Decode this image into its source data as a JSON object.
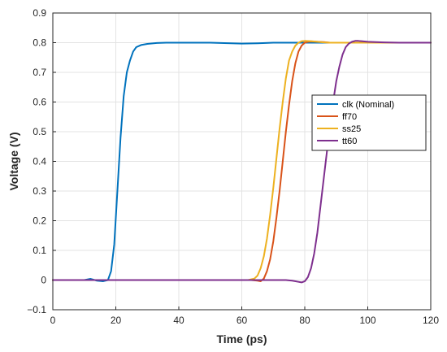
{
  "chart_data": {
    "type": "line",
    "xlabel": "Time (ps)",
    "ylabel": "Voltage (V)",
    "xlim": [
      0,
      120
    ],
    "ylim": [
      -0.1,
      0.9
    ],
    "xticks": [
      0,
      20,
      40,
      60,
      80,
      100,
      120
    ],
    "yticks": [
      -0.1,
      0,
      0.1,
      0.2,
      0.3,
      0.4,
      0.5,
      0.6,
      0.7,
      0.8,
      0.9
    ],
    "xtick_labels": [
      "0",
      "20",
      "40",
      "60",
      "80",
      "100",
      "120"
    ],
    "ytick_labels": [
      "−0.1",
      "0",
      "0.1",
      "0.2",
      "0.3",
      "0.4",
      "0.5",
      "0.6",
      "0.7",
      "0.8",
      "0.9"
    ],
    "grid": true,
    "legend_position": "right",
    "series": [
      {
        "name": "clk (Nominal)",
        "color": "#0072BD",
        "x": [
          0,
          10,
          12,
          14,
          16,
          17.5,
          18.5,
          19.5,
          20.5,
          21.5,
          22.5,
          23.5,
          24.5,
          25.5,
          26.5,
          28,
          30,
          33,
          36,
          40,
          50,
          60,
          65,
          70,
          80,
          90,
          100,
          110,
          120
        ],
        "y": [
          0,
          0,
          0.004,
          -0.002,
          -0.004,
          0,
          0.03,
          0.12,
          0.3,
          0.48,
          0.62,
          0.7,
          0.74,
          0.77,
          0.785,
          0.792,
          0.796,
          0.799,
          0.8,
          0.8,
          0.8,
          0.797,
          0.798,
          0.8,
          0.8,
          0.8,
          0.8,
          0.8,
          0.8
        ]
      },
      {
        "name": "ff70",
        "color": "#D95319",
        "x": [
          0,
          20,
          40,
          55,
          60,
          63,
          65,
          66,
          67,
          68,
          69,
          70,
          71,
          72,
          73,
          74,
          75,
          76,
          77,
          78,
          79,
          80,
          81,
          82,
          84,
          86,
          88,
          90,
          100,
          110,
          120
        ],
        "y": [
          0,
          0,
          0,
          0,
          0,
          0,
          -0.002,
          -0.004,
          0.005,
          0.03,
          0.07,
          0.13,
          0.21,
          0.3,
          0.4,
          0.5,
          0.59,
          0.67,
          0.73,
          0.77,
          0.79,
          0.8,
          0.803,
          0.804,
          0.803,
          0.802,
          0.8,
          0.8,
          0.8,
          0.8,
          0.8
        ]
      },
      {
        "name": "ss25",
        "color": "#EDB120",
        "x": [
          0,
          20,
          40,
          55,
          60,
          62,
          64,
          65,
          66,
          67,
          68,
          69,
          70,
          71,
          72,
          73,
          74,
          75,
          76,
          77,
          78,
          79,
          80,
          82,
          84,
          86,
          88,
          90,
          100,
          110,
          120
        ],
        "y": [
          0,
          0,
          0,
          0,
          0,
          0,
          0.005,
          0.015,
          0.04,
          0.08,
          0.14,
          0.22,
          0.31,
          0.41,
          0.51,
          0.6,
          0.68,
          0.74,
          0.77,
          0.79,
          0.8,
          0.805,
          0.806,
          0.805,
          0.803,
          0.801,
          0.8,
          0.8,
          0.8,
          0.8,
          0.8
        ]
      },
      {
        "name": "tt60",
        "color": "#7E2F8E",
        "x": [
          0,
          20,
          40,
          60,
          70,
          74,
          76,
          78,
          79,
          80,
          81,
          82,
          83,
          84,
          85,
          86,
          87,
          88,
          89,
          90,
          91,
          92,
          93,
          94,
          95,
          96,
          97,
          98,
          100,
          105,
          110,
          120
        ],
        "y": [
          0,
          0,
          0,
          0,
          0,
          0,
          -0.002,
          -0.006,
          -0.008,
          -0.004,
          0.01,
          0.04,
          0.09,
          0.16,
          0.25,
          0.34,
          0.43,
          0.52,
          0.6,
          0.67,
          0.72,
          0.76,
          0.785,
          0.797,
          0.803,
          0.806,
          0.806,
          0.805,
          0.803,
          0.801,
          0.8,
          0.8
        ]
      }
    ]
  }
}
